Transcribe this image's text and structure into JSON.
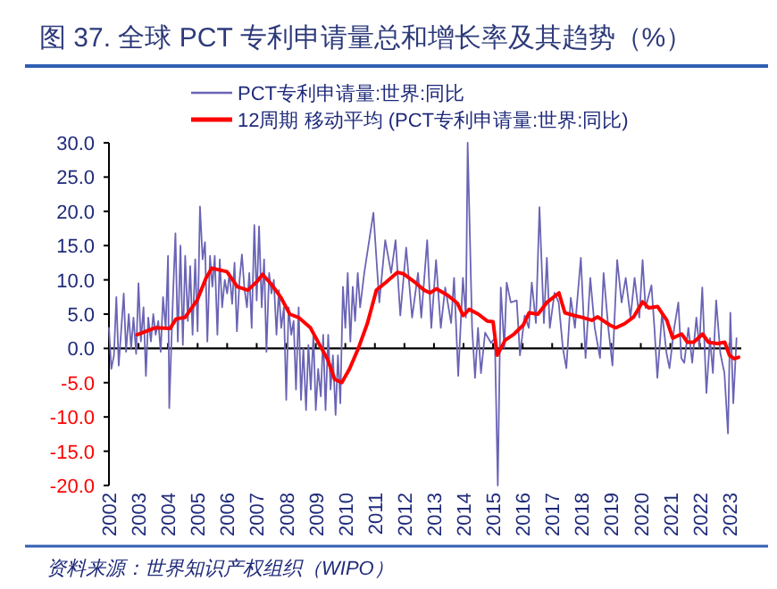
{
  "chart_data": {
    "type": "line",
    "title": "图 37. 全球 PCT 专利申请量总和增长率及其趋势（%）",
    "legend": "top",
    "xlim": [
      2002,
      2023.4
    ],
    "xticks": [
      2002,
      2003,
      2004,
      2005,
      2006,
      2007,
      2008,
      2009,
      2010,
      2011,
      2012,
      2013,
      2014,
      2015,
      2016,
      2017,
      2018,
      2019,
      2020,
      2021,
      2022,
      2023
    ],
    "ylim": [
      -20,
      30
    ],
    "yticks": [
      {
        "value": 30,
        "label": "30.0"
      },
      {
        "value": 25,
        "label": "25.0"
      },
      {
        "value": 20,
        "label": "20.0"
      },
      {
        "value": 15,
        "label": "15.0"
      },
      {
        "value": 10,
        "label": "10.0"
      },
      {
        "value": 5,
        "label": "5.0"
      },
      {
        "value": 0,
        "label": "0.0"
      },
      {
        "value": -5,
        "label": "-5.0"
      },
      {
        "value": -10,
        "label": "-10.0"
      },
      {
        "value": -15,
        "label": "-15.0"
      },
      {
        "value": -20,
        "label": "-20.0"
      }
    ],
    "series": [
      {
        "name": "PCT专利申请量:世界:同比",
        "color": "#6a64b4",
        "x": [
          2002,
          2002.08,
          2002.17,
          2002.25,
          2002.33,
          2002.42,
          2002.5,
          2002.58,
          2002.67,
          2002.75,
          2002.83,
          2002.92,
          2003,
          2003.08,
          2003.17,
          2003.25,
          2003.33,
          2003.42,
          2003.5,
          2003.58,
          2003.67,
          2003.75,
          2003.83,
          2003.92,
          2004,
          2004.04,
          2004.17,
          2004.25,
          2004.33,
          2004.42,
          2004.5,
          2004.58,
          2004.67,
          2004.75,
          2004.83,
          2004.92,
          2005,
          2005.08,
          2005.17,
          2005.25,
          2005.33,
          2005.42,
          2005.5,
          2005.58,
          2005.67,
          2005.75,
          2005.83,
          2005.92,
          2006,
          2006.08,
          2006.17,
          2006.25,
          2006.33,
          2006.42,
          2006.5,
          2006.58,
          2006.67,
          2006.75,
          2006.83,
          2006.92,
          2007,
          2007.08,
          2007.17,
          2007.25,
          2007.33,
          2007.42,
          2007.5,
          2007.58,
          2007.67,
          2007.75,
          2007.83,
          2007.92,
          2008,
          2008.08,
          2008.17,
          2008.25,
          2008.33,
          2008.42,
          2008.5,
          2008.58,
          2008.67,
          2008.75,
          2008.83,
          2008.92,
          2009,
          2009.08,
          2009.17,
          2009.25,
          2009.33,
          2009.42,
          2009.5,
          2009.58,
          2009.67,
          2009.75,
          2009.83,
          2009.92,
          2010,
          2010.08,
          2010.17,
          2010.25,
          2010.33,
          2010.42,
          2010.5,
          2010.64,
          2010.95,
          2011.15,
          2011.35,
          2011.55,
          2011.7,
          2011.86,
          2012.06,
          2012.26,
          2012.46,
          2012.57,
          2012.77,
          2012.91,
          2013.07,
          2013.23,
          2013.38,
          2013.58,
          2013.68,
          2013.82,
          2013.98,
          2014.08,
          2014.14,
          2014.29,
          2014.39,
          2014.49,
          2014.59,
          2014.73,
          2014.93,
          2015.06,
          2015.16,
          2015.26,
          2015.38,
          2015.46,
          2015.6,
          2015.8,
          2015.91,
          2016.07,
          2016.21,
          2016.31,
          2016.45,
          2016.57,
          2016.72,
          2016.82,
          2016.92,
          2017.08,
          2017.22,
          2017.36,
          2017.48,
          2017.63,
          2017.77,
          2017.97,
          2018.13,
          2018.29,
          2018.44,
          2018.62,
          2018.74,
          2018.9,
          2019.04,
          2019.2,
          2019.35,
          2019.49,
          2019.65,
          2019.79,
          2019.95,
          2020.06,
          2020.16,
          2020.36,
          2020.46,
          2020.56,
          2020.72,
          2020.87,
          2020.97,
          2021.13,
          2021.27,
          2021.37,
          2021.47,
          2021.61,
          2021.74,
          2021.88,
          2021.98,
          2022.08,
          2022.22,
          2022.34,
          2022.44,
          2022.55,
          2022.69,
          2022.83,
          2022.95,
          2023.03,
          2023.13,
          2023.24
        ],
        "values": [
          3,
          -3,
          -1,
          7.5,
          -2.5,
          3,
          8,
          -0.5,
          5,
          0,
          4.5,
          -0.8,
          9.5,
          1,
          6,
          -4,
          4.5,
          1,
          5,
          2,
          4,
          -0.5,
          7.5,
          3,
          13.5,
          -8.7,
          8,
          16.8,
          1,
          15,
          0.5,
          13.5,
          4,
          12,
          2,
          13,
          2.5,
          20.7,
          13,
          15.5,
          1,
          13.5,
          9,
          13.5,
          2,
          13,
          6,
          10,
          8,
          11,
          6.5,
          12.5,
          2.5,
          10,
          13.7,
          9,
          6,
          11,
          3,
          18,
          7,
          17.8,
          6,
          13,
          -0.5,
          11,
          8,
          10,
          2,
          8.5,
          3,
          6,
          -7.5,
          6,
          2,
          4,
          -6,
          6,
          -7.5,
          0,
          -9,
          0.5,
          -6,
          2,
          -9,
          -3,
          -7,
          2,
          -9,
          2,
          -6,
          -1,
          -9.7,
          -1,
          -8,
          9,
          3,
          11,
          1,
          9,
          4,
          11,
          6,
          11,
          19.8,
          6.7,
          15.8,
          11,
          15.8,
          4.8,
          14.7,
          4.5,
          11,
          4.5,
          15.8,
          3,
          12.9,
          3,
          8.9,
          3.7,
          10.3,
          -4,
          10.3,
          4.5,
          30,
          3,
          -4.3,
          3,
          -3.6,
          2.3,
          0.8,
          1.5,
          -20,
          8.9,
          0.1,
          9.6,
          6.7,
          7,
          -1,
          4.8,
          3,
          9.6,
          3.7,
          20.6,
          3.7,
          13.2,
          3,
          8.1,
          6.7,
          0.1,
          -2.9,
          7.4,
          3,
          13.2,
          -1.4,
          10.3,
          3,
          -1.4,
          11,
          3,
          -2.5,
          12.9,
          6.7,
          10.3,
          4.5,
          10.3,
          4.5,
          12.9,
          5.9,
          9.2,
          3,
          -4.3,
          5.2,
          -0.7,
          -2.9,
          3,
          6.7,
          -1.4,
          -2.1,
          3,
          -2.1,
          4.5,
          0.1,
          8.9,
          -6.5,
          1.5,
          -3.6,
          7,
          -0.7,
          -3.6,
          -12.4,
          5.2,
          -8,
          1.5
        ]
      },
      {
        "name": "12周期 移动平均 (PCT专利申请量:世界:同比)",
        "color": "#ff0000",
        "x": [
          2002.95,
          2003.56,
          2004.07,
          2004.27,
          2004.57,
          2004.98,
          2005.28,
          2005.48,
          2005.99,
          2006.35,
          2006.7,
          2007,
          2007.2,
          2007.51,
          2007.81,
          2008.12,
          2008.42,
          2008.82,
          2009.13,
          2009.39,
          2009.64,
          2009.88,
          2010.14,
          2010.44,
          2010.75,
          2011.05,
          2011.36,
          2011.76,
          2011.96,
          2012.37,
          2012.67,
          2012.87,
          2013.08,
          2013.48,
          2013.79,
          2013.99,
          2014.19,
          2014.5,
          2014.8,
          2015,
          2015.14,
          2015.41,
          2015.71,
          2016.02,
          2016.22,
          2016.52,
          2016.82,
          2017.23,
          2017.43,
          2017.74,
          2018.04,
          2018.34,
          2018.54,
          2018.95,
          2019.15,
          2019.45,
          2019.76,
          2020.06,
          2020.27,
          2020.57,
          2020.88,
          2021.08,
          2021.38,
          2021.58,
          2021.79,
          2022.09,
          2022.29,
          2022.6,
          2022.84,
          2023,
          2023.16,
          2023.31
        ],
        "values": [
          2,
          3,
          2.9,
          4.3,
          4.5,
          7,
          10.2,
          11.7,
          11.2,
          9,
          8.5,
          9.7,
          10.8,
          9.3,
          7.5,
          5,
          4.5,
          3,
          0.5,
          -1.5,
          -4.5,
          -5,
          -3,
          0,
          3.7,
          8.5,
          9.6,
          11.1,
          10.9,
          9.6,
          8.5,
          8.1,
          8.7,
          7.7,
          6.6,
          4.8,
          5.7,
          5,
          4,
          3.9,
          -1,
          1.2,
          2.1,
          3.4,
          5.2,
          5,
          6.7,
          8.1,
          5.2,
          4.8,
          4.5,
          4.1,
          4.6,
          3.4,
          3,
          3.6,
          4.6,
          6.8,
          5.9,
          6.1,
          4.1,
          1.5,
          2.1,
          0.9,
          0.9,
          2.1,
          0.9,
          0.7,
          0.9,
          -1,
          -1.5,
          -1.3
        ]
      }
    ],
    "annotations": [
      "资料来源：世界知识产权组织（WIPO）"
    ]
  }
}
